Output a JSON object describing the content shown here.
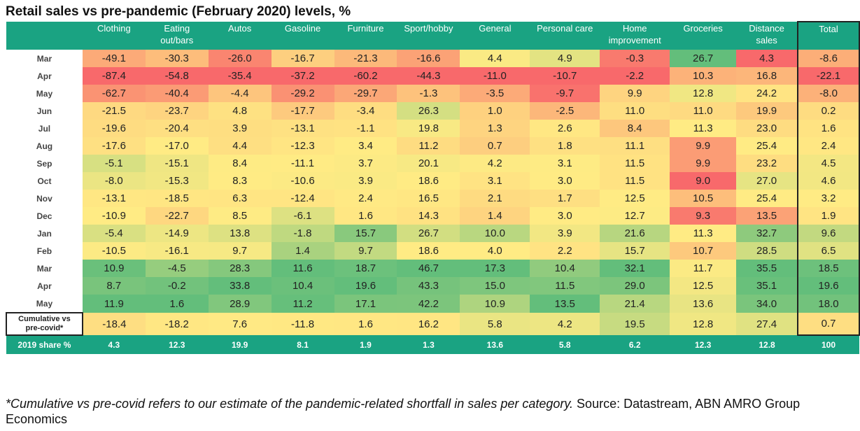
{
  "chart_data": {
    "type": "table",
    "title": "Retail sales vs pre-pandemic (February 2020) levels, %",
    "columns": [
      {
        "label": "Clothing",
        "label2": ""
      },
      {
        "label": "Eating",
        "label2": "out/bars"
      },
      {
        "label": "Autos",
        "label2": ""
      },
      {
        "label": "Gasoline",
        "label2": ""
      },
      {
        "label": "Furniture",
        "label2": ""
      },
      {
        "label": "Sport/hobby",
        "label2": ""
      },
      {
        "label": "General",
        "label2": ""
      },
      {
        "label": "Personal care",
        "label2": ""
      },
      {
        "label": "Home",
        "label2": "improvement"
      },
      {
        "label": "Groceries",
        "label2": ""
      },
      {
        "label": "Distance",
        "label2": "sales"
      },
      {
        "label": "Total",
        "label2": ""
      }
    ],
    "rows": [
      {
        "label": "Mar",
        "values": [
          "-49.1",
          "-30.3",
          "-26.0",
          "-16.7",
          "-21.3",
          "-16.6",
          "4.4",
          "4.9",
          "-0.3",
          "26.7",
          "4.3",
          "-8.6"
        ]
      },
      {
        "label": "Apr",
        "values": [
          "-87.4",
          "-54.8",
          "-35.4",
          "-37.2",
          "-60.2",
          "-44.3",
          "-11.0",
          "-10.7",
          "-2.2",
          "10.3",
          "16.8",
          "-22.1"
        ]
      },
      {
        "label": "May",
        "values": [
          "-62.7",
          "-40.4",
          "-4.4",
          "-29.2",
          "-29.7",
          "-1.3",
          "-3.5",
          "-9.7",
          "9.9",
          "12.8",
          "24.2",
          "-8.0"
        ]
      },
      {
        "label": "Jun",
        "values": [
          "-21.5",
          "-23.7",
          "4.8",
          "-17.7",
          "-3.4",
          "26.3",
          "1.0",
          "-2.5",
          "11.0",
          "11.0",
          "19.9",
          "0.2"
        ]
      },
      {
        "label": "Jul",
        "values": [
          "-19.6",
          "-20.4",
          "3.9",
          "-13.1",
          "-1.1",
          "19.8",
          "1.3",
          "2.6",
          "8.4",
          "11.3",
          "23.0",
          "1.6"
        ]
      },
      {
        "label": "Aug",
        "values": [
          "-17.6",
          "-17.0",
          "4.4",
          "-12.3",
          "3.4",
          "11.2",
          "0.7",
          "1.8",
          "11.1",
          "9.9",
          "25.4",
          "2.4"
        ]
      },
      {
        "label": "Sep",
        "values": [
          "-5.1",
          "-15.1",
          "8.4",
          "-11.1",
          "3.7",
          "20.1",
          "4.2",
          "3.1",
          "11.5",
          "9.9",
          "23.2",
          "4.5"
        ]
      },
      {
        "label": "Oct",
        "values": [
          "-8.0",
          "-15.3",
          "8.3",
          "-10.6",
          "3.9",
          "18.6",
          "3.1",
          "3.0",
          "11.5",
          "9.0",
          "27.0",
          "4.6"
        ]
      },
      {
        "label": "Nov",
        "values": [
          "-13.1",
          "-18.5",
          "6.3",
          "-12.4",
          "2.4",
          "16.5",
          "2.1",
          "1.7",
          "12.5",
          "10.5",
          "25.4",
          "3.2"
        ]
      },
      {
        "label": "Dec",
        "values": [
          "-10.9",
          "-22.7",
          "8.5",
          "-6.1",
          "1.6",
          "14.3",
          "1.4",
          "3.0",
          "12.7",
          "9.3",
          "13.5",
          "1.9"
        ]
      },
      {
        "label": "Jan",
        "values": [
          "-5.4",
          "-14.9",
          "13.8",
          "-1.8",
          "15.7",
          "26.7",
          "10.0",
          "3.9",
          "21.6",
          "11.3",
          "32.7",
          "9.6"
        ]
      },
      {
        "label": "Feb",
        "values": [
          "-10.5",
          "-16.1",
          "9.7",
          "1.4",
          "9.7",
          "18.6",
          "4.0",
          "2.2",
          "15.7",
          "10.7",
          "28.5",
          "6.5"
        ]
      },
      {
        "label": "Mar",
        "values": [
          "10.9",
          "-4.5",
          "28.3",
          "11.6",
          "18.7",
          "46.7",
          "17.3",
          "10.4",
          "32.1",
          "11.7",
          "35.5",
          "18.5"
        ]
      },
      {
        "label": "Apr",
        "values": [
          "8.7",
          "-0.2",
          "33.8",
          "10.4",
          "19.6",
          "43.3",
          "15.0",
          "11.5",
          "29.0",
          "12.5",
          "35.1",
          "19.6"
        ]
      },
      {
        "label": "May",
        "values": [
          "11.9",
          "1.6",
          "28.9",
          "11.2",
          "17.1",
          "42.2",
          "10.9",
          "13.5",
          "21.4",
          "13.6",
          "34.0",
          "18.0"
        ]
      }
    ],
    "cumulative": {
      "label": "Cumulative vs",
      "label2": "pre-covid*",
      "values": [
        "-18.4",
        "-18.2",
        "7.6",
        "-11.8",
        "1.6",
        "16.2",
        "5.8",
        "4.2",
        "19.5",
        "12.8",
        "27.4",
        "0.7"
      ]
    },
    "share": {
      "label": "2019 share %",
      "values": [
        "4.3",
        "12.3",
        "19.9",
        "8.1",
        "1.9",
        "1.3",
        "13.6",
        "5.8",
        "6.2",
        "12.3",
        "12.8",
        "100"
      ]
    }
  },
  "footnote": {
    "italic": "*Cumulative vs pre-covid refers to our estimate of the pandemic-related shortfall in sales per category.",
    "plain": " Source: Datastream, ABN AMRO Group Economics"
  },
  "colors": {
    "header_bg": "#1aa382",
    "scale_neg": "#f8696b",
    "scale_mid": "#ffeb84",
    "scale_pos": "#63be7b"
  }
}
